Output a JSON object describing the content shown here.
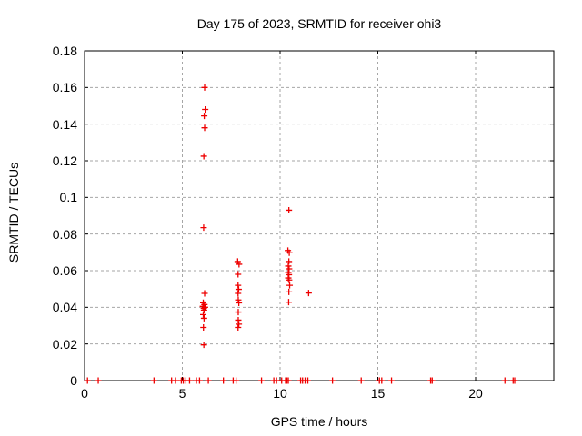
{
  "title": "Day 175 of 2023, SRMTID for receiver ohi3",
  "chart_data": {
    "type": "scatter",
    "title": "Day 175 of 2023, SRMTID for receiver ohi3",
    "xlabel": "GPS time / hours",
    "ylabel": "SRMTID / TECUs",
    "xlim": [
      0,
      24
    ],
    "ylim": [
      0,
      0.18
    ],
    "x_ticks": [
      {
        "value": 0,
        "label": "0"
      },
      {
        "value": 5,
        "label": "5"
      },
      {
        "value": 10,
        "label": "10"
      },
      {
        "value": 15,
        "label": "15"
      },
      {
        "value": 20,
        "label": "20"
      }
    ],
    "y_ticks": [
      {
        "value": 0,
        "label": "0"
      },
      {
        "value": 0.02,
        "label": "0.02"
      },
      {
        "value": 0.04,
        "label": "0.04"
      },
      {
        "value": 0.06,
        "label": "0.06"
      },
      {
        "value": 0.08,
        "label": "0.08"
      },
      {
        "value": 0.1,
        "label": "0.1"
      },
      {
        "value": 0.12,
        "label": "0.12"
      },
      {
        "value": 0.14,
        "label": "0.14"
      },
      {
        "value": 0.16,
        "label": "0.16"
      },
      {
        "value": 0.18,
        "label": "0.18"
      }
    ],
    "grid": true,
    "legend": "none",
    "marker": "plus",
    "marker_color": "#ee0000",
    "series": [
      {
        "name": "SRMTID",
        "points": [
          [
            6.14,
            0.16
          ],
          [
            6.17,
            0.148
          ],
          [
            6.12,
            0.1445
          ],
          [
            6.14,
            0.138
          ],
          [
            6.1,
            0.1225
          ],
          [
            6.09,
            0.0835
          ],
          [
            6.14,
            0.0476
          ],
          [
            6.07,
            0.0425
          ],
          [
            6.13,
            0.0415
          ],
          [
            6.05,
            0.0405
          ],
          [
            6.16,
            0.04
          ],
          [
            6.1,
            0.0395
          ],
          [
            6.11,
            0.0385
          ],
          [
            6.07,
            0.036
          ],
          [
            6.11,
            0.034
          ],
          [
            6.08,
            0.029
          ],
          [
            6.1,
            0.0195
          ],
          [
            7.83,
            0.065
          ],
          [
            7.9,
            0.0635
          ],
          [
            7.85,
            0.058
          ],
          [
            7.85,
            0.052
          ],
          [
            7.88,
            0.0498
          ],
          [
            7.85,
            0.0476
          ],
          [
            7.86,
            0.044
          ],
          [
            7.89,
            0.0424
          ],
          [
            7.86,
            0.0374
          ],
          [
            7.86,
            0.033
          ],
          [
            7.89,
            0.0308
          ],
          [
            7.85,
            0.029
          ],
          [
            10.45,
            0.093
          ],
          [
            10.4,
            0.071
          ],
          [
            10.47,
            0.0698
          ],
          [
            10.45,
            0.065
          ],
          [
            10.42,
            0.0625
          ],
          [
            10.46,
            0.061
          ],
          [
            10.42,
            0.059
          ],
          [
            10.45,
            0.0578
          ],
          [
            10.42,
            0.056
          ],
          [
            10.46,
            0.0549
          ],
          [
            10.49,
            0.052
          ],
          [
            10.45,
            0.0484
          ],
          [
            10.44,
            0.0428
          ],
          [
            11.46,
            0.0478
          ],
          [
            0.15,
            0
          ],
          [
            0.7,
            0
          ],
          [
            3.55,
            0
          ],
          [
            4.45,
            0
          ],
          [
            4.65,
            0
          ],
          [
            4.95,
            0
          ],
          [
            5.05,
            0
          ],
          [
            5.18,
            0
          ],
          [
            5.37,
            0
          ],
          [
            5.72,
            0
          ],
          [
            5.88,
            0
          ],
          [
            6.33,
            0
          ],
          [
            7.1,
            0
          ],
          [
            7.6,
            0
          ],
          [
            7.75,
            0
          ],
          [
            9.05,
            0
          ],
          [
            9.68,
            0
          ],
          [
            9.82,
            0
          ],
          [
            10.08,
            0
          ],
          [
            10.28,
            0
          ],
          [
            10.35,
            0
          ],
          [
            10.42,
            0
          ],
          [
            11.05,
            0
          ],
          [
            11.15,
            0
          ],
          [
            11.28,
            0
          ],
          [
            11.42,
            0
          ],
          [
            12.68,
            0
          ],
          [
            14.15,
            0
          ],
          [
            15.08,
            0
          ],
          [
            15.2,
            0
          ],
          [
            15.7,
            0
          ],
          [
            17.7,
            0
          ],
          [
            17.78,
            0
          ],
          [
            21.5,
            0
          ],
          [
            21.92,
            0
          ],
          [
            22.0,
            0
          ]
        ]
      }
    ],
    "colors": {
      "marker": "#ee0000",
      "border": "#000000",
      "grid": "#a6a6a6",
      "background": "#ffffff",
      "text": "#000000"
    }
  }
}
